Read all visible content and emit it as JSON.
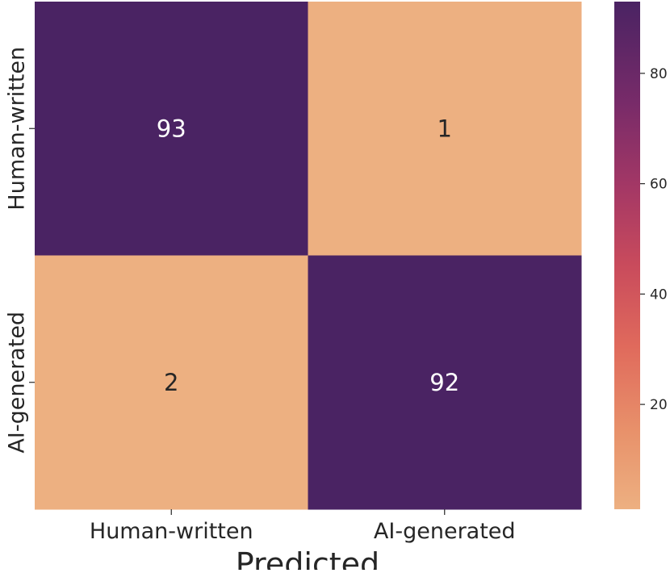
{
  "chart_data": {
    "type": "heatmap",
    "title": "",
    "xlabel": "Predicted",
    "ylabel": "",
    "x_categories": [
      "Human-written",
      "AI-generated"
    ],
    "y_categories": [
      "Human-written",
      "AI-generated"
    ],
    "values": [
      [
        93,
        1
      ],
      [
        2,
        92
      ]
    ],
    "colorbar": {
      "range": [
        1,
        93
      ],
      "ticks": [
        20,
        40,
        60,
        80
      ],
      "colormap": "flare",
      "color_low": "#edb081",
      "color_high": "#4a2363"
    },
    "annotation_colors": {
      "on_dark": "#ffffff",
      "on_light": "#262626"
    }
  }
}
